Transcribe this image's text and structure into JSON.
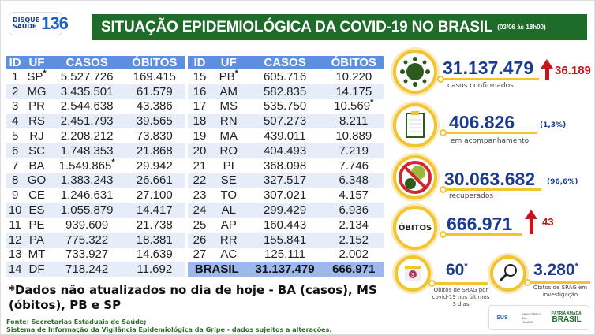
{
  "header": {
    "logo_top": "DISQUE",
    "logo_bottom": "SAÚDE",
    "logo_number": "136",
    "title": "SITUAÇÃO EPIDEMIOLÓGICA DA COVID-19 NO BRASIL",
    "date": "(03/06 às 18h00)"
  },
  "colors": {
    "title_bg": "#1e6b2a",
    "table_header": "#5d8ee0",
    "accent_yellow": "#f3c431",
    "number_blue": "#1c3b8f",
    "increase_red": "#c4161c"
  },
  "table": {
    "columns": [
      "ID",
      "UF",
      "CASOS",
      "ÓBITOS"
    ],
    "left": [
      [
        "1",
        "SP",
        "5.527.726",
        "169.415",
        "uf"
      ],
      [
        "2",
        "MG",
        "3.435.501",
        "61.579"
      ],
      [
        "3",
        "PR",
        "2.544.638",
        "43.386"
      ],
      [
        "4",
        "RS",
        "2.451.793",
        "39.565"
      ],
      [
        "5",
        "RJ",
        "2.208.212",
        "73.830"
      ],
      [
        "6",
        "SC",
        "1.748.353",
        "21.868"
      ],
      [
        "7",
        "BA",
        "1.549.865",
        "29.942",
        "casos"
      ],
      [
        "8",
        "GO",
        "1.383.243",
        "26.661"
      ],
      [
        "9",
        "CE",
        "1.246.631",
        "27.100"
      ],
      [
        "10",
        "ES",
        "1.055.879",
        "14.417"
      ],
      [
        "11",
        "PE",
        "939.609",
        "21.738"
      ],
      [
        "12",
        "PA",
        "775.322",
        "18.381"
      ],
      [
        "13",
        "MT",
        "733.927",
        "14.639"
      ],
      [
        "14",
        "DF",
        "718.242",
        "11.692"
      ]
    ],
    "right": [
      [
        "15",
        "PB",
        "605.716",
        "10.220",
        "uf"
      ],
      [
        "16",
        "AM",
        "582.835",
        "14.175"
      ],
      [
        "17",
        "MS",
        "535.750",
        "10.569",
        "obitos"
      ],
      [
        "18",
        "RN",
        "507.273",
        "8.211"
      ],
      [
        "19",
        "MA",
        "439.011",
        "10.889"
      ],
      [
        "20",
        "RO",
        "404.493",
        "7.219"
      ],
      [
        "21",
        "PI",
        "368.098",
        "7.746"
      ],
      [
        "22",
        "SE",
        "327.517",
        "6.348"
      ],
      [
        "23",
        "TO",
        "307.021",
        "4.157"
      ],
      [
        "24",
        "AL",
        "299.429",
        "6.936"
      ],
      [
        "25",
        "AP",
        "160.443",
        "2.134"
      ],
      [
        "26",
        "RR",
        "155.841",
        "2.152"
      ],
      [
        "27",
        "AC",
        "125.111",
        "2.002"
      ]
    ],
    "total": {
      "label": "BRASIL",
      "casos": "31.137.479",
      "obitos": "666.971"
    },
    "asterisk": "*"
  },
  "stats": {
    "confirmed": {
      "value": "31.137.479",
      "label": "casos confirmados",
      "increase": "36.189",
      "icon": "virus-icon"
    },
    "monitoring": {
      "value": "406.826",
      "label": "em acompanhamento",
      "pct": "(1,3%)",
      "icon": "clipboard-icon"
    },
    "recovered": {
      "value": "30.063.682",
      "label": "recuperados",
      "pct": "(96,6%)",
      "icon": "no-virus-icon"
    },
    "deaths": {
      "badge": "ÓBITOS",
      "value": "666.971",
      "increase": "43"
    },
    "srag3": {
      "value": "60",
      "label": "Óbitos de SRAG por covid-19 nos últimos 3 dias",
      "calendar_day": "3",
      "icon": "calendar-icon"
    },
    "srag_inv": {
      "value": "3.280",
      "label": "Óbitos de SRAG em investigação",
      "icon": "magnifier-icon"
    }
  },
  "note": "*Dados não atualizados no dia de hoje - BA (casos), MS (óbitos), PB e SP",
  "source": {
    "line1": "Fonte: Secretarias Estaduais de Saúde;",
    "line2": "Sistema de Informação da Vigilância Epidemiológica da Gripe - dados sujeitos a alterações."
  },
  "footer_logos": {
    "sus": "SUS",
    "ministry": "MINISTÉRIO DA SAÚDE",
    "brasil": "BRASIL",
    "motto": "PÁTRIA AMADA"
  }
}
